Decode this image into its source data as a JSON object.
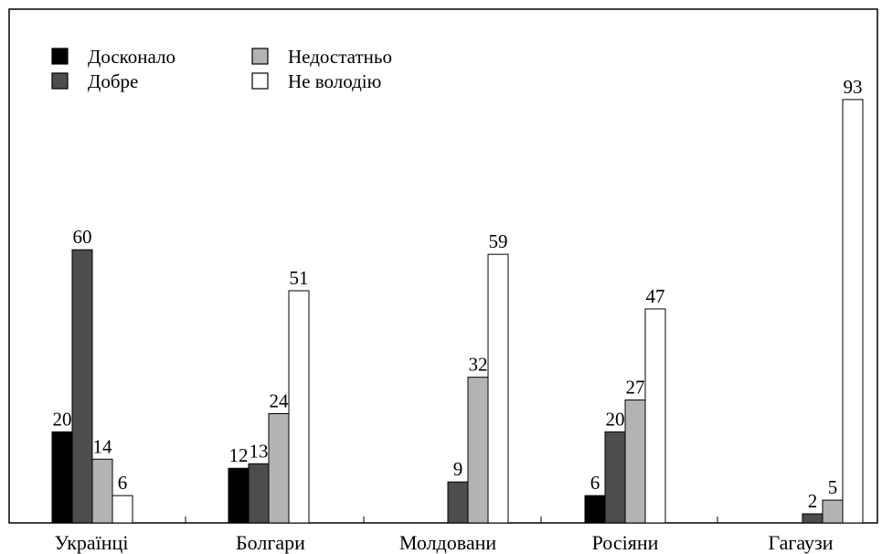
{
  "chart_data": {
    "type": "bar",
    "title": "",
    "xlabel": "",
    "ylabel": "",
    "ylim": [
      0,
      100
    ],
    "grid": false,
    "legend_position": "top-left",
    "categories": [
      "Українці",
      "Болгари",
      "Молдовани",
      "Росіяни",
      "Гагаузи"
    ],
    "series": [
      {
        "name": "Досконало",
        "color": "#000000",
        "values": [
          20,
          12,
          null,
          6,
          null
        ]
      },
      {
        "name": "Добре",
        "color": "#4d4d4d",
        "values": [
          60,
          13,
          9,
          20,
          2
        ]
      },
      {
        "name": "Недостатньо",
        "color": "#b3b3b3",
        "values": [
          14,
          24,
          32,
          27,
          5
        ]
      },
      {
        "name": "Не володію",
        "color": "#ffffff",
        "values": [
          6,
          51,
          59,
          47,
          93
        ]
      }
    ]
  }
}
